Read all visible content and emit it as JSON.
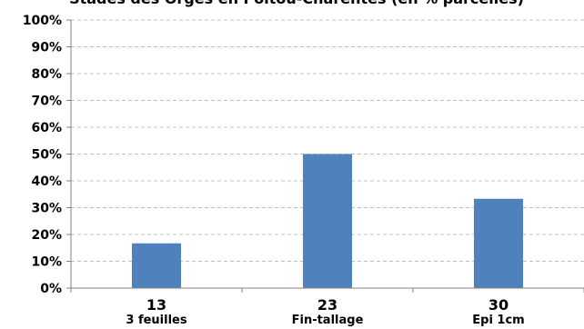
{
  "chart_data": {
    "type": "bar",
    "title": "Stades des Orges en Poitou-Charentes (en % parcelles)",
    "xlabel": "",
    "ylabel": "",
    "categories": [
      {
        "code": "13",
        "label": "3 feuilles"
      },
      {
        "code": "23",
        "label": "Fin-tallage"
      },
      {
        "code": "30",
        "label": "Epi 1cm"
      }
    ],
    "values": [
      16.7,
      50,
      33.3
    ],
    "ylim": [
      0,
      100
    ],
    "yticks": [
      "0%",
      "10%",
      "20%",
      "30%",
      "40%",
      "50%",
      "60%",
      "70%",
      "80%",
      "90%",
      "100%"
    ],
    "grid": true,
    "legend": "none",
    "colors": {
      "bar": "#4f81bd",
      "grid": "#c0c0c0",
      "axis": "#808080"
    }
  }
}
